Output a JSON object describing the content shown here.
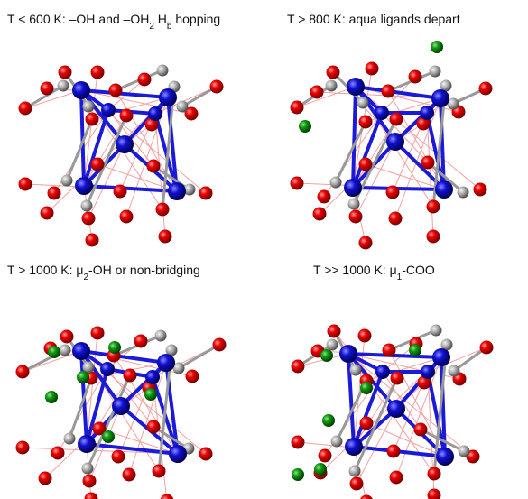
{
  "panels": [
    {
      "title": [
        {
          "text": "T < 600 K:  –OH and –OH"
        },
        {
          "text": "2",
          "sub": true
        },
        {
          "text": " H"
        },
        {
          "text": "b",
          "sub": true
        },
        {
          "text": " hopping"
        }
      ]
    },
    {
      "title": [
        {
          "text": "T > 800 K: aqua ligands depart"
        }
      ]
    },
    {
      "title": [
        {
          "text": "T > 1000 K: μ"
        },
        {
          "text": "2",
          "sub": true
        },
        {
          "text": "-OH or non-bridging"
        }
      ]
    },
    {
      "title": [
        {
          "text": "T >> 1000 K: μ"
        },
        {
          "text": "1",
          "sub": true
        },
        {
          "text": "-COO"
        }
      ]
    }
  ]
}
